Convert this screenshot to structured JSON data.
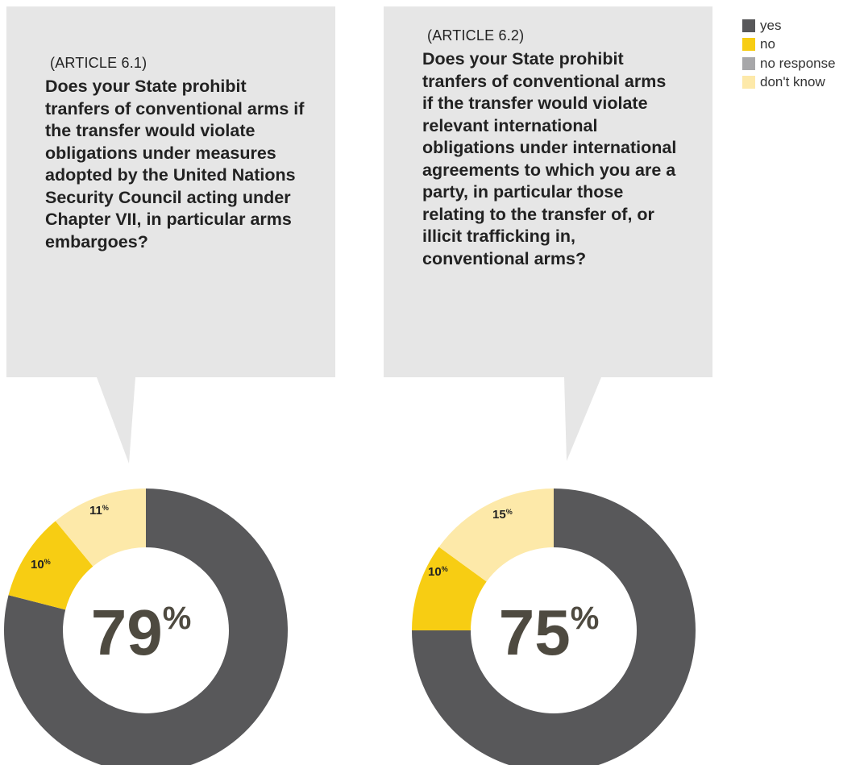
{
  "legend": [
    {
      "label": "yes",
      "color": "#58585a"
    },
    {
      "label": "no",
      "color": "#f7cd13"
    },
    {
      "label": "no response",
      "color": "#a7a7a9"
    },
    {
      "label": "don't know",
      "color": "#fde9a9"
    }
  ],
  "questions": [
    {
      "article": "(ARTICLE 6.1)",
      "question": "Does your State prohibit tranfers of conventional arms if the transfer would violate obligations under measures adopted by the United Nations Security Council acting under Chapter VII, in particular arms embargoes?"
    },
    {
      "article": "(ARTICLE 6.2)",
      "question": "Does your State prohibit tranfers of conventional arms if the transfer would violate relevant international obligations under international agreements to which you are a party, in particular those relating to the transfer of, or illicit trafficking in, conventional arms?"
    }
  ],
  "chart_data": [
    {
      "type": "pie",
      "donut": true,
      "categories": [
        "yes",
        "no",
        "don't know"
      ],
      "values": [
        79,
        10,
        11
      ],
      "colors": [
        "#58585a",
        "#f7cd13",
        "#fde9a9"
      ],
      "center_label": "79",
      "center_unit": "%",
      "labels": [
        "",
        "10",
        "11"
      ],
      "unit": "%"
    },
    {
      "type": "pie",
      "donut": true,
      "categories": [
        "yes",
        "no",
        "don't know"
      ],
      "values": [
        75,
        10,
        15
      ],
      "colors": [
        "#58585a",
        "#f7cd13",
        "#fde9a9"
      ],
      "center_label": "75",
      "center_unit": "%",
      "labels": [
        "",
        "10",
        "15"
      ],
      "unit": "%"
    }
  ]
}
